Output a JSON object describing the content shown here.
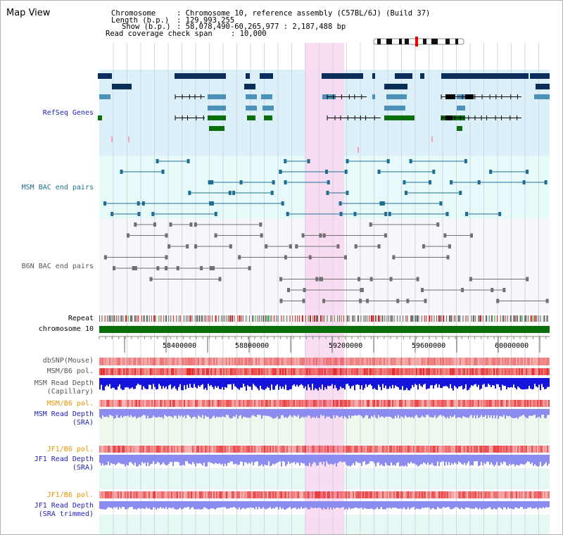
{
  "window_title": "Map View",
  "header": {
    "chromosome_key": "Chromosome",
    "chromosome_val": "Chromosome 10, reference assembly (C57BL/6J) (Build 37)",
    "length_key": "Length (b.p.)",
    "length_val": "129,993,255",
    "show_key": "Show (b.p.)",
    "show_val": "58,078,490-60,265,977 : 2,187,488 bp",
    "span_key": "Read coverage check span",
    "span_val": "10,000"
  },
  "tracks": {
    "refseq": "RefSeq Genes",
    "msm_bac": "MSM BAC end pairs",
    "b6n_bac": "B6N BAC end pairs",
    "repeat": "Repeat",
    "chromosome": "chromosome 10",
    "dbsnp": "dbSNP(Mouse)",
    "msm_b6_pol": "MSM/B6 pol.",
    "msm_depth_cap": "MSM Read Depth",
    "msm_depth_cap_sub": "(Capillary)",
    "msm_b6_pol2": "MSM/B6 pol.",
    "msm_depth_sra": "MSM Read Depth",
    "msm_depth_sra_sub": "(SRA)",
    "jf1_b6_pol": "JF1/B6 pol.",
    "jf1_depth_sra": "JF1 Read Depth",
    "jf1_depth_sra_sub": "(SRA)",
    "jf1_b6_pol2": "JF1/B6 pol.",
    "jf1_depth_trim": "JF1 Read Depth",
    "jf1_depth_trim_sub": "(SRA trimmed)"
  },
  "axis": {
    "ticks": [
      "58400000",
      "58800000",
      "59200000",
      "59600000",
      "60000000"
    ]
  },
  "colors": {
    "refseq_bg": "#dcf0fa",
    "bac_bg": "#e6fafa",
    "highlight": "#fad7f0",
    "gene_dark": "#0a2d5a",
    "gene_mid": "#4b91b9",
    "gene_green": "#0a6e0a",
    "msm_bac": "#1e6e91",
    "b6n_bac": "#707070",
    "chromosome": "#0a6e0a",
    "label_blue": "#1e1eb4",
    "label_teal": "#1e6e91",
    "label_gray": "#555555",
    "label_orange": "#e69600",
    "depth_blue": "#1414dc",
    "depth_violet": "#8c8cf0",
    "pol_red": "#e61e1e"
  }
}
